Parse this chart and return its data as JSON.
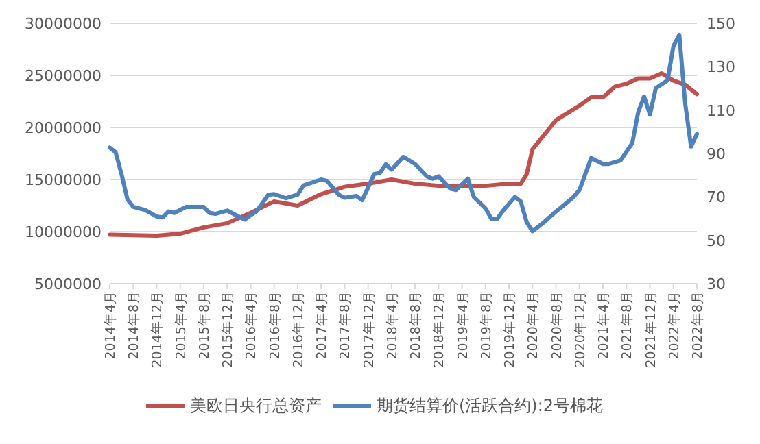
{
  "chart_data": {
    "type": "line",
    "xlim": [
      "2014-04",
      "2022-08"
    ],
    "xticks": [
      {
        "value": "2014-04",
        "label": "2014年4月"
      },
      {
        "value": "2014-08",
        "label": "2014年8月"
      },
      {
        "value": "2014-12",
        "label": "2014年12月"
      },
      {
        "value": "2015-04",
        "label": "2015年4月"
      },
      {
        "value": "2015-08",
        "label": "2015年8月"
      },
      {
        "value": "2015-12",
        "label": "2015年12月"
      },
      {
        "value": "2016-04",
        "label": "2016年4月"
      },
      {
        "value": "2016-08",
        "label": "2016年8月"
      },
      {
        "value": "2016-12",
        "label": "2016年12月"
      },
      {
        "value": "2017-04",
        "label": "2017年4月"
      },
      {
        "value": "2017-08",
        "label": "2017年8月"
      },
      {
        "value": "2017-12",
        "label": "2017年12月"
      },
      {
        "value": "2018-04",
        "label": "2018年4月"
      },
      {
        "value": "2018-08",
        "label": "2018年8月"
      },
      {
        "value": "2018-12",
        "label": "2018年12月"
      },
      {
        "value": "2019-04",
        "label": "2019年4月"
      },
      {
        "value": "2019-08",
        "label": "2019年8月"
      },
      {
        "value": "2019-12",
        "label": "2019年12月"
      },
      {
        "value": "2020-04",
        "label": "2020年4月"
      },
      {
        "value": "2020-08",
        "label": "2020年8月"
      },
      {
        "value": "2020-12",
        "label": "2020年12月"
      },
      {
        "value": "2021-04",
        "label": "2021年4月"
      },
      {
        "value": "2021-08",
        "label": "2021年8月"
      },
      {
        "value": "2021-12",
        "label": "2021年12月"
      },
      {
        "value": "2022-04",
        "label": "2022年4月"
      },
      {
        "value": "2022-08",
        "label": "2022年8月"
      }
    ],
    "ylim": [
      5000000,
      30000000
    ],
    "yticks": [
      5000000,
      10000000,
      15000000,
      20000000,
      25000000,
      30000000
    ],
    "y2lim": [
      30,
      150
    ],
    "y2ticks": [
      30,
      50,
      70,
      90,
      110,
      130,
      150
    ],
    "grid": "y",
    "legend": "bottom",
    "series": [
      {
        "name": "美欧日央行总资产",
        "color": "#c0504d",
        "x": [
          "2014-04",
          "2014-12",
          "2015-04",
          "2015-08",
          "2015-12",
          "2016-04",
          "2016-08",
          "2016-12",
          "2017-04",
          "2017-08",
          "2017-12",
          "2018-04",
          "2018-08",
          "2018-12",
          "2019-04",
          "2019-08",
          "2019-12",
          "2020-02",
          "2020-03",
          "2020-04",
          "2020-08",
          "2020-12",
          "2021-02",
          "2021-04",
          "2021-06",
          "2021-08",
          "2021-10",
          "2021-12",
          "2022-02",
          "2022-04",
          "2022-06",
          "2022-08"
        ],
        "values": [
          9700000,
          9600000,
          9800000,
          10400000,
          10800000,
          11800000,
          12900000,
          12500000,
          13600000,
          14300000,
          14600000,
          15000000,
          14600000,
          14400000,
          14400000,
          14400000,
          14600000,
          14600000,
          15500000,
          17900000,
          20700000,
          22100000,
          22900000,
          22900000,
          23900000,
          24200000,
          24700000,
          24700000,
          25200000,
          24500000,
          24100000,
          23200000
        ]
      },
      {
        "name": "期货结算价(活跃合约):2号棉花",
        "color": "#4f81bd",
        "axis": "y2",
        "x": [
          "2014-04",
          "2014-05",
          "2014-06",
          "2014-07",
          "2014-08",
          "2014-10",
          "2014-12",
          "2015-01",
          "2015-02",
          "2015-03",
          "2015-05",
          "2015-08",
          "2015-09",
          "2015-10",
          "2015-12",
          "2016-03",
          "2016-04",
          "2016-05",
          "2016-07",
          "2016-08",
          "2016-10",
          "2016-12",
          "2017-01",
          "2017-04",
          "2017-05",
          "2017-07",
          "2017-08",
          "2017-10",
          "2017-11",
          "2017-12",
          "2018-01",
          "2018-02",
          "2018-03",
          "2018-04",
          "2018-06",
          "2018-08",
          "2018-10",
          "2018-11",
          "2018-12",
          "2019-02",
          "2019-03",
          "2019-05",
          "2019-06",
          "2019-08",
          "2019-09",
          "2019-10",
          "2019-11",
          "2020-01",
          "2020-02",
          "2020-03",
          "2020-04",
          "2020-06",
          "2020-08",
          "2020-09",
          "2020-11",
          "2020-12",
          "2021-02",
          "2021-04",
          "2021-05",
          "2021-07",
          "2021-09",
          "2021-10",
          "2021-11",
          "2021-12",
          "2022-01",
          "2022-03",
          "2022-04",
          "2022-05",
          "2022-06",
          "2022-07",
          "2022-08"
        ],
        "values": [
          92.7,
          90.6,
          80.5,
          69,
          65.4,
          64,
          61,
          60.5,
          63.3,
          62.6,
          65.4,
          65.4,
          62.6,
          62.2,
          63.7,
          59.5,
          61.6,
          63.3,
          71,
          71.3,
          69.4,
          71,
          75.3,
          78,
          77.4,
          71,
          69.6,
          70.4,
          68.5,
          74.2,
          80.5,
          81,
          85,
          82.6,
          88.5,
          85.2,
          79.5,
          78.4,
          79.5,
          73.8,
          73.2,
          78.4,
          70,
          64.7,
          59.9,
          59.9,
          63.7,
          70,
          67.9,
          58.4,
          54.2,
          58.4,
          63.3,
          65.4,
          70,
          73.2,
          87.9,
          85.2,
          85.2,
          86.8,
          94.8,
          109,
          116.3,
          107.9,
          120.1,
          123.7,
          139.5,
          144.7,
          113.2,
          93.2,
          99
        ]
      }
    ]
  }
}
